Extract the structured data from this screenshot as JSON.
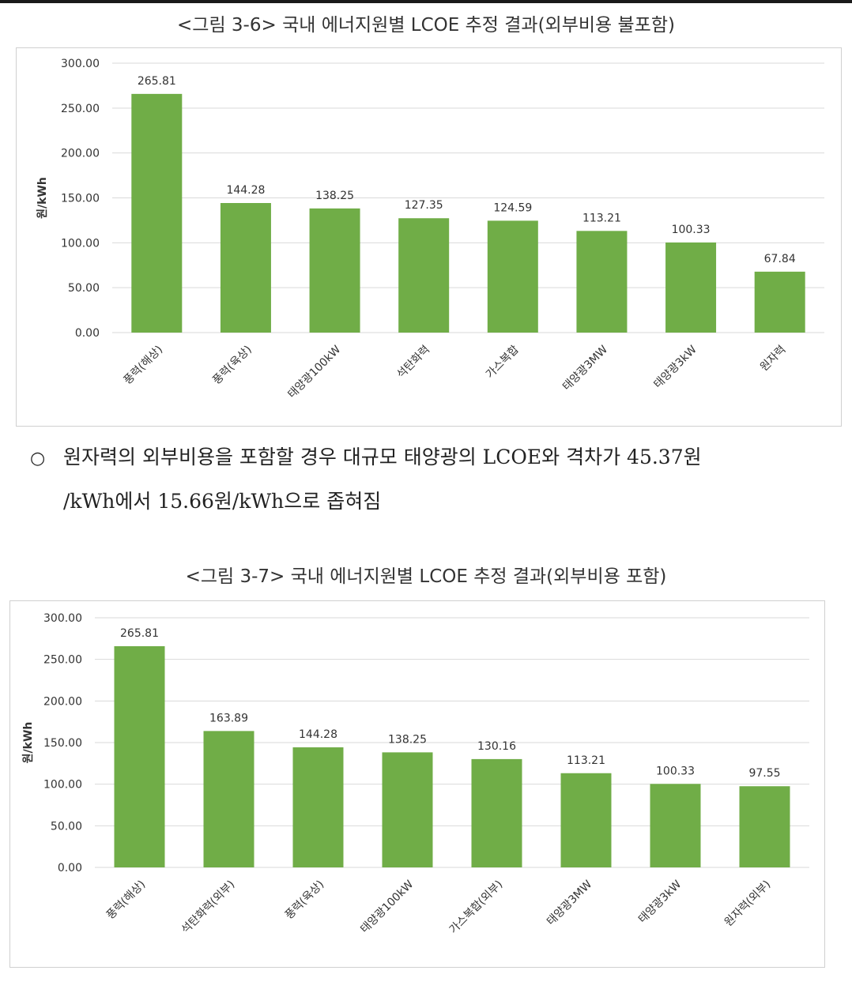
{
  "colors": {
    "bar": "#70ad47",
    "grid": "#d9d9d9",
    "frame": "#d0d0d0",
    "text": "#333333"
  },
  "figure1": {
    "title": "<그림 3-6> 국내 에너지원별 LCOE 추정 결과(외부비용 불포함)"
  },
  "figure2": {
    "title": "<그림 3-7> 국내 에너지원별 LCOE 추정 결과(외부비용 포함)"
  },
  "paragraph": {
    "bullet": "○",
    "line1": "원자력의 외부비용을 포함할 경우 대규모 태양광의 LCOE와 격차가 45.37원",
    "line2": "/kWh에서 15.66원/kWh으로 좁혀짐"
  },
  "chart_data": [
    {
      "type": "bar",
      "ylabel": "원/kWh",
      "ylim": [
        0,
        300
      ],
      "yticks": [
        "0.00",
        "50.00",
        "100.00",
        "150.00",
        "200.00",
        "250.00",
        "300.00"
      ],
      "grid": true,
      "categories": [
        "풍력(해상)",
        "풍력(육상)",
        "태양광100kW",
        "석탄화력",
        "가스복합",
        "태양광3MW",
        "태양광3kW",
        "원자력"
      ],
      "values": [
        265.81,
        144.28,
        138.25,
        127.35,
        124.59,
        113.21,
        100.33,
        67.84
      ],
      "value_labels": [
        "265.81",
        "144.28",
        "138.25",
        "127.35",
        "124.59",
        "113.21",
        "100.33",
        "67.84"
      ]
    },
    {
      "type": "bar",
      "ylabel": "원/kWh",
      "ylim": [
        0,
        300
      ],
      "yticks": [
        "0.00",
        "50.00",
        "100.00",
        "150.00",
        "200.00",
        "250.00",
        "300.00"
      ],
      "grid": true,
      "categories": [
        "풍력(해상)",
        "석탄화력(외부)",
        "풍력(육상)",
        "태양광100kW",
        "가스복합(외부)",
        "태양광3MW",
        "태양광3kW",
        "원자력(외부)"
      ],
      "values": [
        265.81,
        163.89,
        144.28,
        138.25,
        130.16,
        113.21,
        100.33,
        97.55
      ],
      "value_labels": [
        "265.81",
        "163.89",
        "144.28",
        "138.25",
        "130.16",
        "113.21",
        "100.33",
        "97.55"
      ]
    }
  ]
}
